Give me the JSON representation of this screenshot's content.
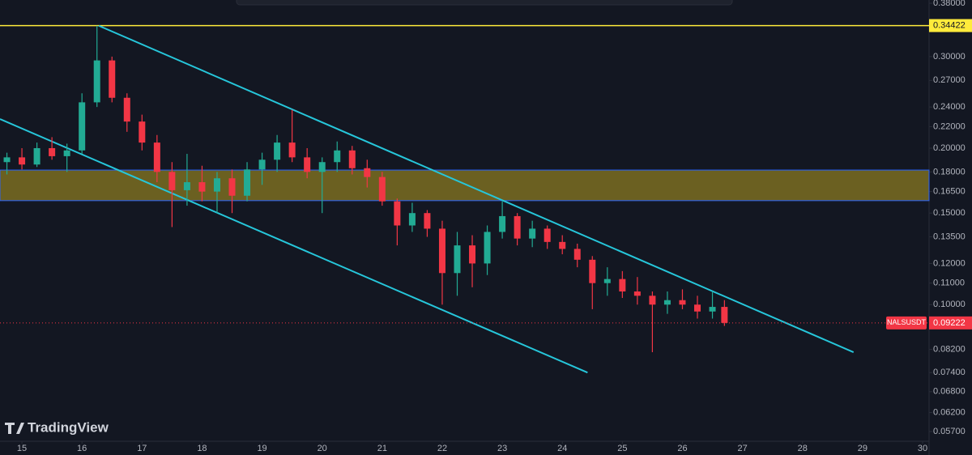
{
  "chart_data": {
    "type": "candlestick",
    "symbol": "NALSUSDT",
    "watermark": "TradingView",
    "x": [
      14.75,
      15.0,
      15.25,
      15.5,
      15.75,
      16.0,
      16.25,
      16.5,
      16.75,
      17.0,
      17.25,
      17.5,
      17.75,
      18.0,
      18.25,
      18.5,
      18.75,
      19.0,
      19.25,
      19.5,
      19.75,
      20.0,
      20.25,
      20.5,
      20.75,
      21.0,
      21.25,
      21.5,
      21.75,
      22.0,
      22.25,
      22.5,
      22.75,
      23.0,
      23.25,
      23.5,
      23.75,
      24.0,
      24.25,
      24.5,
      24.75,
      25.0,
      25.25,
      25.5,
      25.75,
      26.0,
      26.25,
      26.5,
      26.7
    ],
    "open": [
      0.188,
      0.192,
      0.186,
      0.2,
      0.193,
      0.198,
      0.245,
      0.295,
      0.25,
      0.225,
      0.205,
      0.18,
      0.166,
      0.172,
      0.165,
      0.175,
      0.162,
      0.182,
      0.19,
      0.205,
      0.192,
      0.18,
      0.188,
      0.198,
      0.183,
      0.176,
      0.158,
      0.142,
      0.15,
      0.14,
      0.115,
      0.13,
      0.12,
      0.138,
      0.148,
      0.134,
      0.14,
      0.132,
      0.128,
      0.122,
      0.11,
      0.112,
      0.106,
      0.104,
      0.1,
      0.102,
      0.1,
      0.097,
      0.099
    ],
    "high": [
      0.196,
      0.2,
      0.205,
      0.21,
      0.204,
      0.255,
      0.344,
      0.3,
      0.255,
      0.232,
      0.212,
      0.188,
      0.195,
      0.185,
      0.18,
      0.182,
      0.188,
      0.196,
      0.212,
      0.237,
      0.2,
      0.192,
      0.206,
      0.202,
      0.19,
      0.18,
      0.16,
      0.157,
      0.152,
      0.145,
      0.138,
      0.136,
      0.142,
      0.158,
      0.15,
      0.145,
      0.142,
      0.136,
      0.131,
      0.124,
      0.118,
      0.116,
      0.113,
      0.106,
      0.106,
      0.107,
      0.104,
      0.106,
      0.102
    ],
    "low": [
      0.178,
      0.182,
      0.184,
      0.19,
      0.18,
      0.195,
      0.24,
      0.245,
      0.215,
      0.198,
      0.172,
      0.141,
      0.155,
      0.158,
      0.15,
      0.15,
      0.158,
      0.17,
      0.18,
      0.188,
      0.175,
      0.15,
      0.18,
      0.178,
      0.168,
      0.155,
      0.13,
      0.138,
      0.135,
      0.1,
      0.104,
      0.108,
      0.114,
      0.134,
      0.13,
      0.129,
      0.128,
      0.125,
      0.118,
      0.098,
      0.104,
      0.103,
      0.1,
      0.081,
      0.096,
      0.098,
      0.094,
      0.094,
      0.091
    ],
    "close": [
      0.192,
      0.186,
      0.2,
      0.193,
      0.198,
      0.245,
      0.295,
      0.25,
      0.225,
      0.205,
      0.18,
      0.166,
      0.172,
      0.165,
      0.175,
      0.162,
      0.182,
      0.19,
      0.205,
      0.192,
      0.18,
      0.188,
      0.198,
      0.183,
      0.176,
      0.158,
      0.142,
      0.15,
      0.14,
      0.115,
      0.13,
      0.12,
      0.138,
      0.148,
      0.134,
      0.14,
      0.132,
      0.128,
      0.122,
      0.11,
      0.112,
      0.106,
      0.104,
      0.1,
      0.102,
      0.1,
      0.097,
      0.099,
      0.09222
    ],
    "up_color": "#22ab94",
    "down_color": "#f23645",
    "log_scale": true,
    "xlim": [
      14.635,
      30.108
    ],
    "xticks": [
      15,
      16,
      17,
      18,
      19,
      20,
      21,
      22,
      23,
      24,
      25,
      26,
      27,
      28,
      29,
      30
    ],
    "ylim": [
      0.0546,
      0.3855
    ],
    "yticks": [
      {
        "value": 0.38,
        "label": "0.38000"
      },
      {
        "value": 0.3,
        "label": "0.30000"
      },
      {
        "value": 0.27,
        "label": "0.27000"
      },
      {
        "value": 0.24,
        "label": "0.24000"
      },
      {
        "value": 0.22,
        "label": "0.22000"
      },
      {
        "value": 0.2,
        "label": "0.20000"
      },
      {
        "value": 0.18,
        "label": "0.18000"
      },
      {
        "value": 0.165,
        "label": "0.16500"
      },
      {
        "value": 0.15,
        "label": "0.15000"
      },
      {
        "value": 0.135,
        "label": "0.13500"
      },
      {
        "value": 0.12,
        "label": "0.12000"
      },
      {
        "value": 0.11,
        "label": "0.11000"
      },
      {
        "value": 0.1,
        "label": "0.10000"
      },
      {
        "value": 0.082,
        "label": "0.08200"
      },
      {
        "value": 0.074,
        "label": "0.07400"
      },
      {
        "value": 0.068,
        "label": "0.06800"
      },
      {
        "value": 0.062,
        "label": "0.06200"
      },
      {
        "value": 0.057,
        "label": "0.05700"
      }
    ],
    "horizontal_line": {
      "value": 0.34422,
      "color": "#ffeb3b"
    },
    "last_price": {
      "value": 0.09222,
      "color": "#f23645"
    },
    "zone": {
      "low": 0.1585,
      "high": 0.1815,
      "color": "#8a7a22",
      "border_color": "#2962ff"
    },
    "trendlines": [
      {
        "color": "#26c6da",
        "x": [
          16.28,
          28.85
        ],
        "y": [
          0.344,
          0.081
        ]
      },
      {
        "color": "#26c6da",
        "x": [
          14.635,
          24.42
        ],
        "y": [
          0.2275,
          0.074
        ]
      }
    ]
  }
}
